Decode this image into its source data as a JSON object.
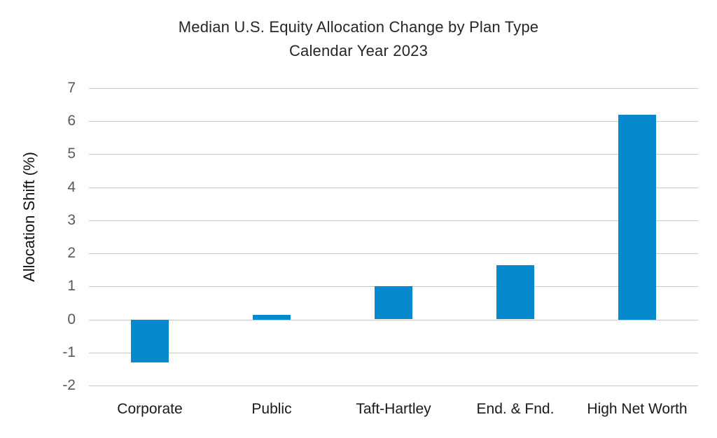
{
  "chart_data": {
    "type": "bar",
    "title": "Median U.S. Equity Allocation Change by Plan Type",
    "subtitle": "Calendar Year 2023",
    "xlabel": "",
    "ylabel": "Allocation Shift (%)",
    "categories": [
      "Corporate",
      "Public",
      "Taft-Hartley",
      "End. & Fnd.",
      "High Net Worth"
    ],
    "values": [
      -1.3,
      0.15,
      1.0,
      1.65,
      6.2
    ],
    "ylim": [
      -2,
      7
    ],
    "yticks": [
      7,
      6,
      5,
      4,
      3,
      2,
      1,
      0,
      -1,
      -2
    ],
    "grid": "horizontal-only",
    "legend_position": "none",
    "colors": {
      "bar": "#0789ce",
      "gridline": "#c9c9c9",
      "tick_label": "#595959",
      "title": "#262626",
      "category_label": "#1a1a1a"
    }
  }
}
